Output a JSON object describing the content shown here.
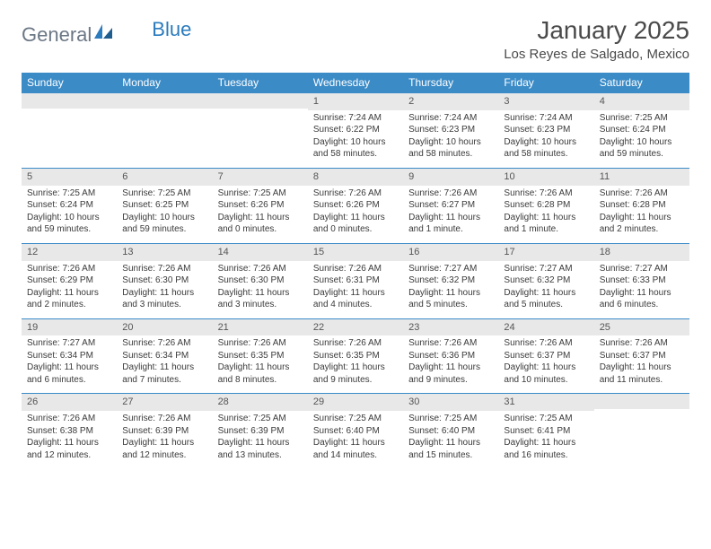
{
  "logo": {
    "text1": "General",
    "text2": "Blue"
  },
  "title": "January 2025",
  "location": "Los Reyes de Salgado, Mexico",
  "colors": {
    "header_bg": "#3b8bc7",
    "header_fg": "#ffffff",
    "daynum_bg": "#e8e8e8",
    "border": "#3b8bc7",
    "text": "#3a3a3a",
    "logo_gray": "#6b7785",
    "logo_blue": "#2b7bbd"
  },
  "weekdays": [
    "Sunday",
    "Monday",
    "Tuesday",
    "Wednesday",
    "Thursday",
    "Friday",
    "Saturday"
  ],
  "weeks": [
    [
      null,
      null,
      null,
      {
        "n": "1",
        "sr": "7:24 AM",
        "ss": "6:22 PM",
        "dl": "10 hours and 58 minutes."
      },
      {
        "n": "2",
        "sr": "7:24 AM",
        "ss": "6:23 PM",
        "dl": "10 hours and 58 minutes."
      },
      {
        "n": "3",
        "sr": "7:24 AM",
        "ss": "6:23 PM",
        "dl": "10 hours and 58 minutes."
      },
      {
        "n": "4",
        "sr": "7:25 AM",
        "ss": "6:24 PM",
        "dl": "10 hours and 59 minutes."
      }
    ],
    [
      {
        "n": "5",
        "sr": "7:25 AM",
        "ss": "6:24 PM",
        "dl": "10 hours and 59 minutes."
      },
      {
        "n": "6",
        "sr": "7:25 AM",
        "ss": "6:25 PM",
        "dl": "10 hours and 59 minutes."
      },
      {
        "n": "7",
        "sr": "7:25 AM",
        "ss": "6:26 PM",
        "dl": "11 hours and 0 minutes."
      },
      {
        "n": "8",
        "sr": "7:26 AM",
        "ss": "6:26 PM",
        "dl": "11 hours and 0 minutes."
      },
      {
        "n": "9",
        "sr": "7:26 AM",
        "ss": "6:27 PM",
        "dl": "11 hours and 1 minute."
      },
      {
        "n": "10",
        "sr": "7:26 AM",
        "ss": "6:28 PM",
        "dl": "11 hours and 1 minute."
      },
      {
        "n": "11",
        "sr": "7:26 AM",
        "ss": "6:28 PM",
        "dl": "11 hours and 2 minutes."
      }
    ],
    [
      {
        "n": "12",
        "sr": "7:26 AM",
        "ss": "6:29 PM",
        "dl": "11 hours and 2 minutes."
      },
      {
        "n": "13",
        "sr": "7:26 AM",
        "ss": "6:30 PM",
        "dl": "11 hours and 3 minutes."
      },
      {
        "n": "14",
        "sr": "7:26 AM",
        "ss": "6:30 PM",
        "dl": "11 hours and 3 minutes."
      },
      {
        "n": "15",
        "sr": "7:26 AM",
        "ss": "6:31 PM",
        "dl": "11 hours and 4 minutes."
      },
      {
        "n": "16",
        "sr": "7:27 AM",
        "ss": "6:32 PM",
        "dl": "11 hours and 5 minutes."
      },
      {
        "n": "17",
        "sr": "7:27 AM",
        "ss": "6:32 PM",
        "dl": "11 hours and 5 minutes."
      },
      {
        "n": "18",
        "sr": "7:27 AM",
        "ss": "6:33 PM",
        "dl": "11 hours and 6 minutes."
      }
    ],
    [
      {
        "n": "19",
        "sr": "7:27 AM",
        "ss": "6:34 PM",
        "dl": "11 hours and 6 minutes."
      },
      {
        "n": "20",
        "sr": "7:26 AM",
        "ss": "6:34 PM",
        "dl": "11 hours and 7 minutes."
      },
      {
        "n": "21",
        "sr": "7:26 AM",
        "ss": "6:35 PM",
        "dl": "11 hours and 8 minutes."
      },
      {
        "n": "22",
        "sr": "7:26 AM",
        "ss": "6:35 PM",
        "dl": "11 hours and 9 minutes."
      },
      {
        "n": "23",
        "sr": "7:26 AM",
        "ss": "6:36 PM",
        "dl": "11 hours and 9 minutes."
      },
      {
        "n": "24",
        "sr": "7:26 AM",
        "ss": "6:37 PM",
        "dl": "11 hours and 10 minutes."
      },
      {
        "n": "25",
        "sr": "7:26 AM",
        "ss": "6:37 PM",
        "dl": "11 hours and 11 minutes."
      }
    ],
    [
      {
        "n": "26",
        "sr": "7:26 AM",
        "ss": "6:38 PM",
        "dl": "11 hours and 12 minutes."
      },
      {
        "n": "27",
        "sr": "7:26 AM",
        "ss": "6:39 PM",
        "dl": "11 hours and 12 minutes."
      },
      {
        "n": "28",
        "sr": "7:25 AM",
        "ss": "6:39 PM",
        "dl": "11 hours and 13 minutes."
      },
      {
        "n": "29",
        "sr": "7:25 AM",
        "ss": "6:40 PM",
        "dl": "11 hours and 14 minutes."
      },
      {
        "n": "30",
        "sr": "7:25 AM",
        "ss": "6:40 PM",
        "dl": "11 hours and 15 minutes."
      },
      {
        "n": "31",
        "sr": "7:25 AM",
        "ss": "6:41 PM",
        "dl": "11 hours and 16 minutes."
      },
      null
    ]
  ],
  "labels": {
    "sunrise": "Sunrise: ",
    "sunset": "Sunset: ",
    "daylight": "Daylight: "
  }
}
